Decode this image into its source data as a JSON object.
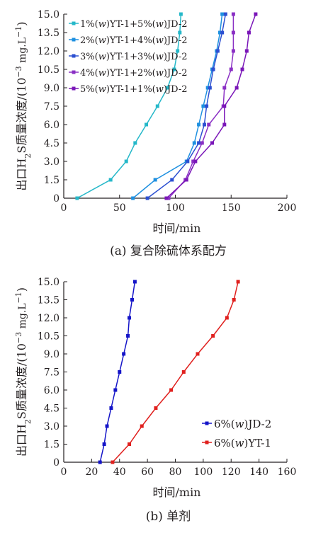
{
  "chart_data": [
    {
      "type": "line",
      "caption": "(a) 复合除硫体系配方",
      "xlabel": "时间/min",
      "ylabel_main": "出口H",
      "ylabel_sub": "2",
      "ylabel_rest": "S质量浓度/(10",
      "ylabel_sup": "−3",
      "ylabel_unit": " mg.L",
      "ylabel_sup2": "−1",
      "ylabel_close": ")",
      "xlim": [
        0,
        200
      ],
      "ylim": [
        0,
        15
      ],
      "xticks": [
        0,
        50,
        100,
        150,
        200
      ],
      "yticks": [
        0,
        1.5,
        3.0,
        4.5,
        6.0,
        7.5,
        9.0,
        10.5,
        12.0,
        13.5,
        15.0
      ],
      "ytick_labels": [
        "0",
        "1.5",
        "3.0",
        "4.5",
        "6.0",
        "7.5",
        "9.0",
        "10.5",
        "12.0",
        "13.5",
        "15.0"
      ],
      "legend_position": "top-left",
      "y": [
        0,
        1.5,
        3.0,
        4.5,
        6.0,
        7.5,
        9.0,
        10.5,
        12.0,
        13.5,
        15.0
      ],
      "series": [
        {
          "name": "1%(w)YT-1+5%(w)JD-2",
          "color": "#25b8c9",
          "x": [
            12,
            42,
            56,
            64,
            74,
            84,
            93,
            99,
            102,
            104,
            105
          ]
        },
        {
          "name": "2%(w)YT-1+4%(w)JD-2",
          "color": "#1e90e0",
          "x": [
            62,
            82,
            110,
            117,
            121,
            125,
            129,
            133,
            137,
            140,
            142
          ]
        },
        {
          "name": "3%(w)YT-1+3%(w)JD-2",
          "color": "#2b4fd1",
          "x": [
            75,
            97,
            111,
            121,
            126,
            128,
            131,
            134,
            138,
            142,
            145
          ]
        },
        {
          "name": "4%(w)YT-1+2%(w)JD-2",
          "color": "#8a2fc4",
          "x": [
            94,
            109,
            116,
            124,
            130,
            143,
            144,
            150,
            152,
            152,
            152
          ]
        },
        {
          "name": "5%(w)YT-1+1%(w)JD-2",
          "color": "#7a16b8",
          "x": [
            92,
            110,
            118,
            133,
            144,
            144,
            155,
            160,
            164,
            166,
            172
          ]
        }
      ]
    },
    {
      "type": "line",
      "caption": "(b) 单剂",
      "xlabel": "时间/min",
      "ylabel_main": "出口H",
      "ylabel_sub": "2",
      "ylabel_rest": "S质量浓度/(10",
      "ylabel_sup": "−3",
      "ylabel_unit": " mg.L",
      "ylabel_sup2": "−1",
      "ylabel_close": ")",
      "xlim": [
        0,
        160
      ],
      "ylim": [
        0,
        15
      ],
      "xticks": [
        0,
        20,
        40,
        60,
        80,
        100,
        120,
        140,
        160
      ],
      "yticks": [
        0,
        1.5,
        3.0,
        4.5,
        6.0,
        7.5,
        9.0,
        10.5,
        12.0,
        13.5,
        15.0
      ],
      "ytick_labels": [
        "0",
        "1.5",
        "3.0",
        "4.5",
        "6.0",
        "7.5",
        "9.0",
        "10.5",
        "12.0",
        "13.5",
        "15.0"
      ],
      "legend_position": "bottom-right",
      "y": [
        0,
        1.5,
        3.0,
        4.5,
        6.0,
        7.5,
        9.0,
        10.5,
        12.0,
        13.5,
        15.0
      ],
      "series": [
        {
          "name_prefix": "6%(",
          "name_italic": "w",
          "name_suffix": ")JD-2",
          "color": "#1414c8",
          "x": [
            26,
            29,
            31,
            34,
            37,
            40,
            43,
            46,
            47,
            49,
            51
          ]
        },
        {
          "name_prefix": "6%(",
          "name_italic": "w",
          "name_suffix": ")YT-1",
          "color": "#e0201e",
          "x": [
            35,
            47,
            56,
            66,
            77,
            86,
            96,
            107,
            117,
            122,
            125
          ]
        }
      ]
    }
  ]
}
